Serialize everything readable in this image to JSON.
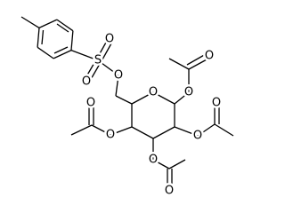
{
  "atoms": [
    "S",
    "O",
    "O",
    "O",
    "O",
    "O",
    "O",
    "O",
    "O",
    "O",
    "O",
    "O",
    "O"
  ]
}
